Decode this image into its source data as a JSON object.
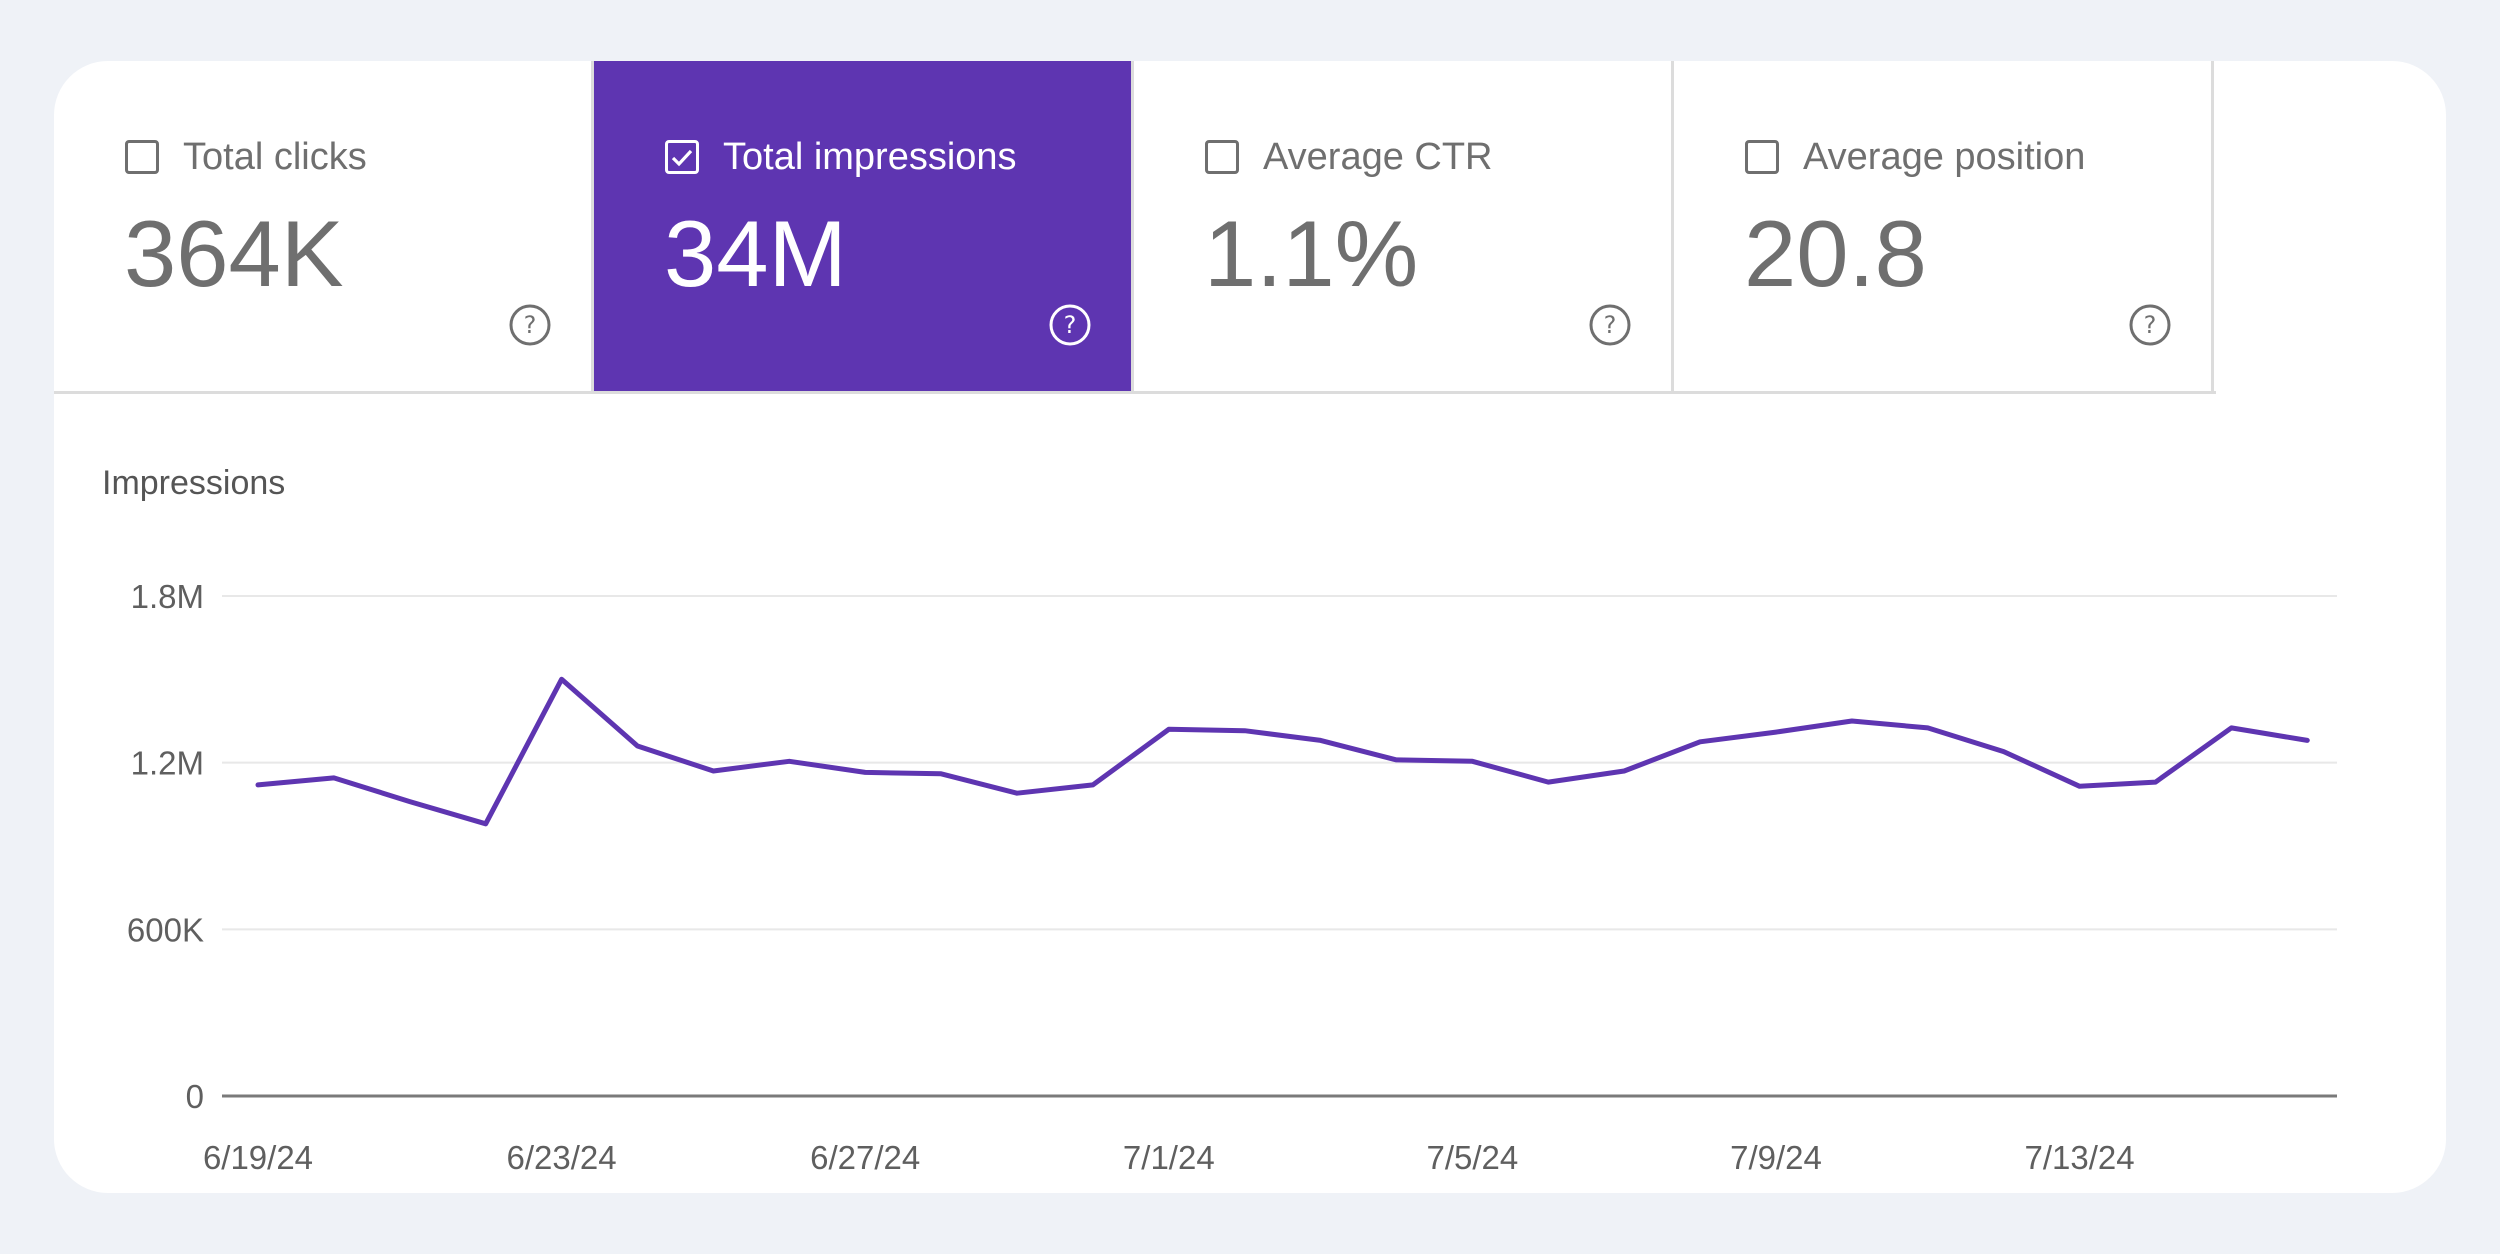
{
  "metrics": [
    {
      "label": "Total clicks",
      "value": "364K",
      "selected": false,
      "help_icon": "help-circle-icon"
    },
    {
      "label": "Total impressions",
      "value": "34M",
      "selected": true,
      "help_icon": "help-circle-icon"
    },
    {
      "label": "Average CTR",
      "value": "1.1%",
      "selected": false,
      "help_icon": "help-circle-icon"
    },
    {
      "label": "Average position",
      "value": "20.8",
      "selected": false,
      "help_icon": "help-circle-icon"
    }
  ],
  "colors": {
    "accent": "#5e35b1",
    "background": "#eff2f7",
    "line": "#5e35b1",
    "grid": "#e8e8e8",
    "axis": "#7a7a7a"
  },
  "chart_data": {
    "type": "line",
    "ylabel": "Impressions",
    "ylim": [
      0,
      1800000
    ],
    "y_ticks": [
      0,
      600000,
      1200000,
      1800000
    ],
    "y_tick_labels": [
      "0",
      "600K",
      "1.2M",
      "1.8M"
    ],
    "grid": true,
    "x_start": "6/19/24",
    "x_tick_labels": [
      "6/19/24",
      "6/23/24",
      "6/27/24",
      "7/1/24",
      "7/5/24",
      "7/9/24",
      "7/13/24"
    ],
    "x_tick_indices": [
      0,
      4,
      8,
      12,
      16,
      20,
      24
    ],
    "x": [
      "6/19/24",
      "6/20/24",
      "6/21/24",
      "6/22/24",
      "6/23/24",
      "6/24/24",
      "6/25/24",
      "6/26/24",
      "6/27/24",
      "6/28/24",
      "6/29/24",
      "6/30/24",
      "7/1/24",
      "7/2/24",
      "7/3/24",
      "7/4/24",
      "7/5/24",
      "7/6/24",
      "7/7/24",
      "7/8/24",
      "7/9/24",
      "7/10/24",
      "7/11/24",
      "7/12/24",
      "7/13/24",
      "7/14/24",
      "7/15/24",
      "7/16/24"
    ],
    "series": [
      {
        "values": [
          1120000,
          1145000,
          1060000,
          980000,
          1500000,
          1260000,
          1170000,
          1205000,
          1165000,
          1160000,
          1090000,
          1120000,
          1320000,
          1315000,
          1280000,
          1210000,
          1205000,
          1130000,
          1170000,
          1275000,
          1310000,
          1350000,
          1325000,
          1240000,
          1115000,
          1130000,
          1325000,
          1280000
        ]
      }
    ]
  }
}
